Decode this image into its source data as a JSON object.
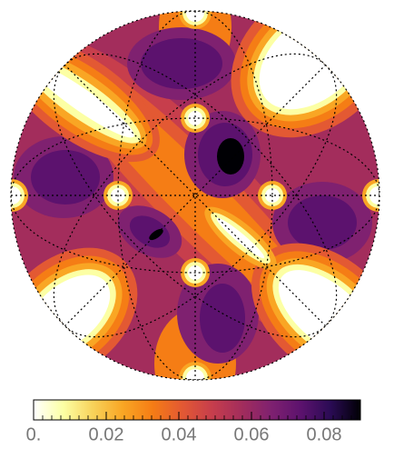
{
  "chart_data": {
    "type": "contour",
    "clim": [
      0,
      0.09
    ],
    "colorbar_ticks": [
      {
        "value": 0,
        "label": "0."
      },
      0.02,
      0.04,
      0.06,
      0.08
    ],
    "minor_step": 0.0025,
    "colormap": [
      "#ffffff",
      "#fcffa4",
      "#f8d25a",
      "#f9a624",
      "#f57d15",
      "#e35933",
      "#c73e4c",
      "#a32d5c",
      "#7f2170",
      "#5c126e",
      "#2a0b54",
      "#000004"
    ]
  }
}
